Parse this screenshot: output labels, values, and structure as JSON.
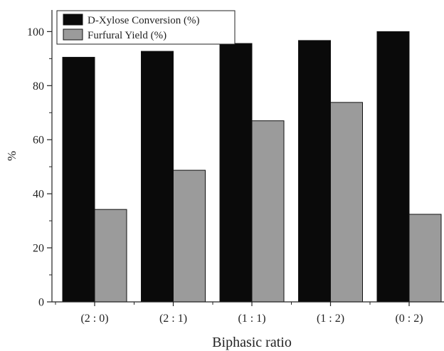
{
  "chart_data": {
    "type": "bar",
    "title": "",
    "xlabel": "Biphasic ratio",
    "ylabel": "%",
    "categories": [
      "(2 : 0)",
      "(2 : 1)",
      "(1 : 1)",
      "(1 : 2)",
      "(0 : 2)"
    ],
    "series": [
      {
        "name": "D-Xylose Conversion (%)",
        "values": [
          90.5,
          92.7,
          95.6,
          96.7,
          100.0
        ],
        "color": "#0a0a0a"
      },
      {
        "name": "Furfural Yield (%)",
        "values": [
          34.2,
          48.7,
          67.0,
          73.8,
          32.4
        ],
        "color": "#9b9b9b"
      }
    ],
    "ylim": [
      0,
      108
    ],
    "yticks": [
      0,
      20,
      40,
      60,
      80,
      100
    ],
    "legend": "top-left",
    "grid": false
  }
}
